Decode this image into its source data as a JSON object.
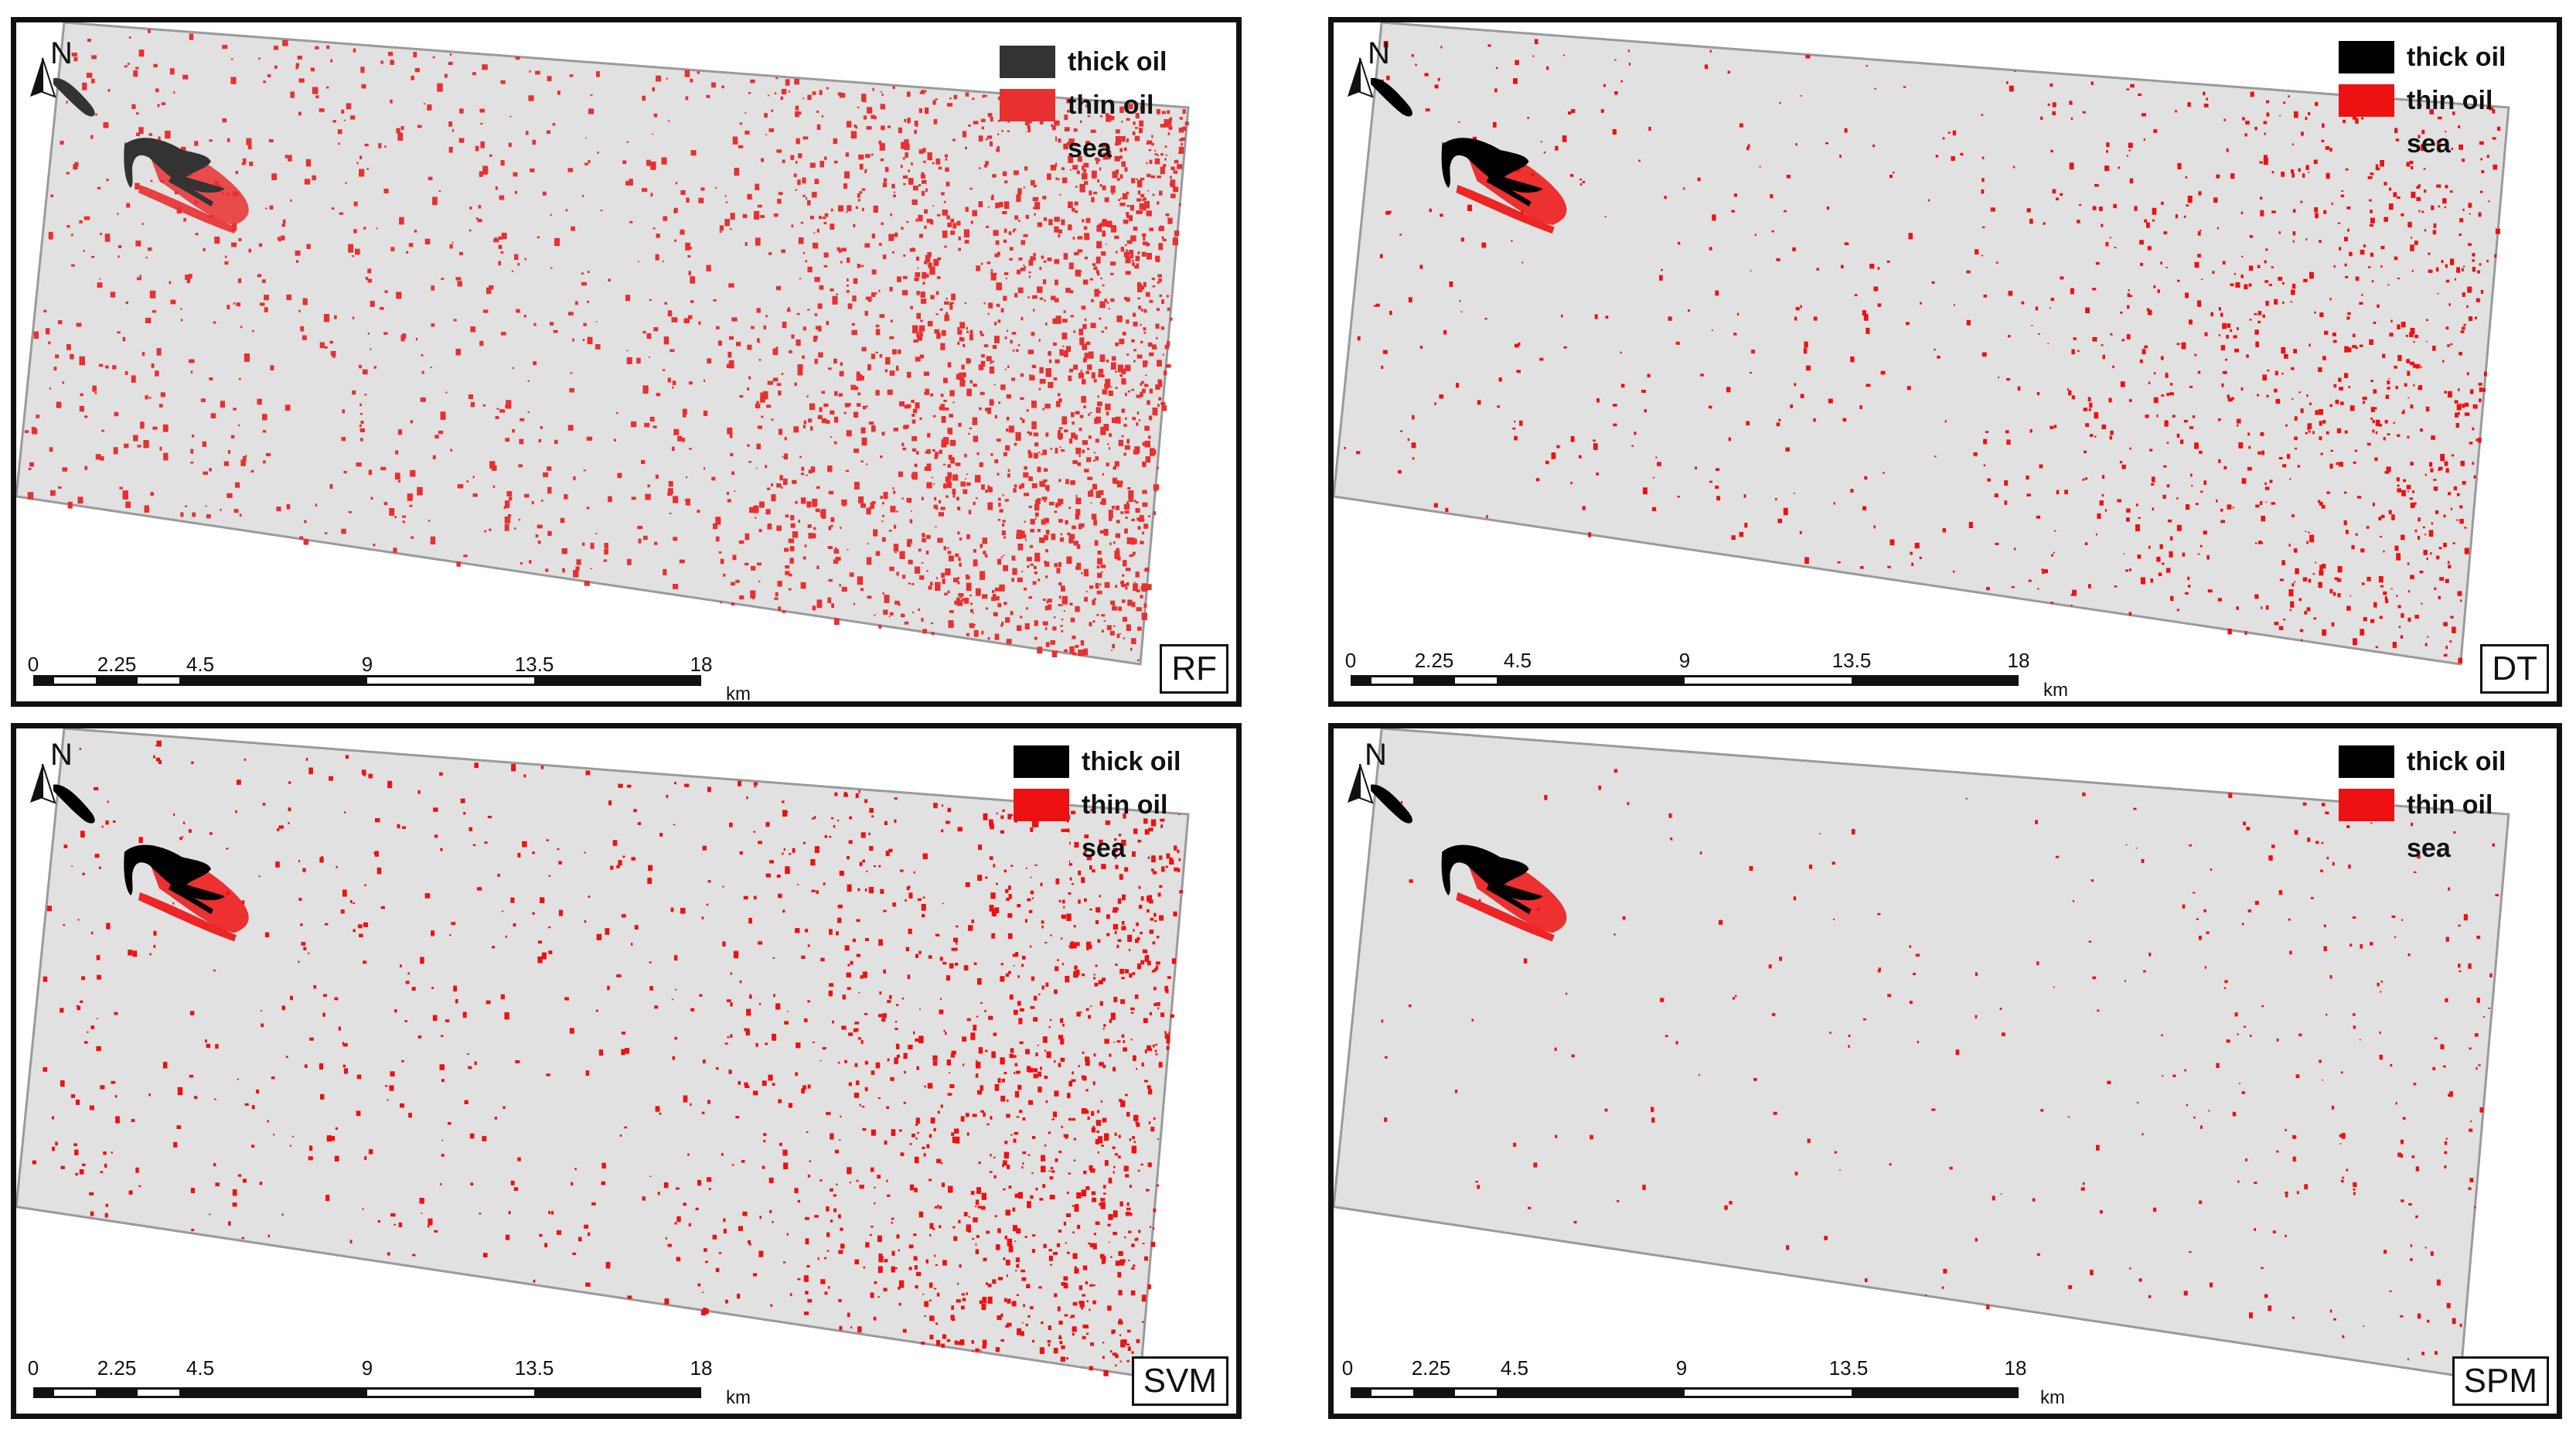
{
  "legend": {
    "items": [
      {
        "label": "thick oil",
        "color": "#000000"
      },
      {
        "label": "thin oil",
        "color": "#ee1111"
      },
      {
        "label": "sea",
        "color": "#e1e1e1"
      }
    ]
  },
  "north_label": "N",
  "scale_bar": {
    "ticks": [
      "0",
      "2.25",
      "4.5",
      "9",
      "13.5",
      "18"
    ],
    "unit": "km"
  },
  "panels": [
    {
      "id": "rf",
      "method": "RF",
      "thick_color": "#333333",
      "thin_color": "#e83030"
    },
    {
      "id": "dt",
      "method": "DT",
      "thick_color": "#000000",
      "thin_color": "#ee1111"
    },
    {
      "id": "svm",
      "method": "SVM",
      "thick_color": "#000000",
      "thin_color": "#ee1111"
    },
    {
      "id": "spm",
      "method": "SPM",
      "thick_color": "#000000",
      "thin_color": "#ee1111"
    }
  ]
}
